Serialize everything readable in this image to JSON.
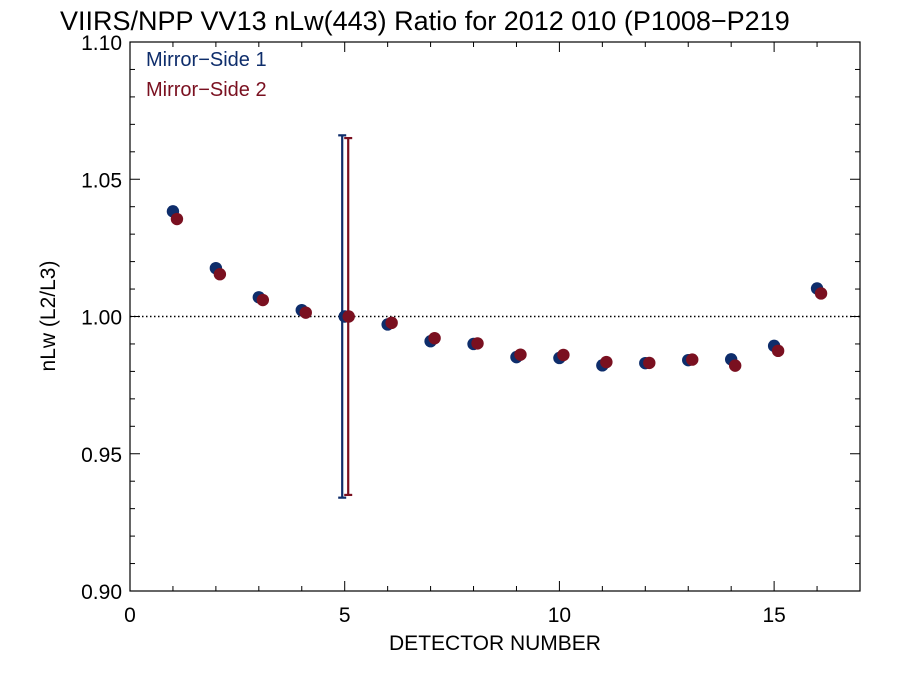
{
  "chart_data": {
    "type": "scatter",
    "title": "VIIRS/NPP VV13 nLw(443) Ratio for 2012 010 (P1008−P219",
    "xlabel": "DETECTOR NUMBER",
    "ylabel": "nLw (L2/L3)",
    "xlim": [
      0,
      17
    ],
    "ylim": [
      0.9,
      1.1
    ],
    "x_ticks": [
      0,
      5,
      10,
      15
    ],
    "x_tick_labels": [
      "0",
      "5",
      "10",
      "15"
    ],
    "y_ticks": [
      0.9,
      0.95,
      1.0,
      1.05,
      1.1
    ],
    "y_tick_labels": [
      "0.90",
      "0.95",
      "1.00",
      "1.05",
      "1.10"
    ],
    "reference_line": {
      "y": 1.0,
      "style": "dotted"
    },
    "legend_position": "top-left",
    "grid": false,
    "series": [
      {
        "name": "Mirror−Side 1",
        "color": "#0e2d6b",
        "x": [
          1,
          2,
          3,
          4,
          5,
          6,
          7,
          8,
          9,
          10,
          11,
          12,
          13,
          14,
          15,
          16
        ],
        "y": [
          1.0383,
          1.0176,
          1.007,
          1.0023,
          1.0,
          0.9971,
          0.991,
          0.99,
          0.9852,
          0.9849,
          0.9822,
          0.983,
          0.9841,
          0.9844,
          0.9893,
          1.0102
        ],
        "error_bar": {
          "x": 5,
          "low": 0.934,
          "high": 1.066
        }
      },
      {
        "name": "Mirror−Side 2",
        "color": "#7a1020",
        "x": [
          1,
          2,
          3,
          4,
          5,
          6,
          7,
          8,
          9,
          10,
          11,
          12,
          13,
          14,
          15,
          16
        ],
        "y": [
          1.0355,
          1.0154,
          1.006,
          1.0014,
          1.0,
          0.9977,
          0.9921,
          0.9902,
          0.9861,
          0.986,
          0.9834,
          0.9831,
          0.9843,
          0.9821,
          0.9875,
          1.0084
        ],
        "error_bar": {
          "x": 5,
          "low": 0.935,
          "high": 1.065
        }
      }
    ]
  }
}
